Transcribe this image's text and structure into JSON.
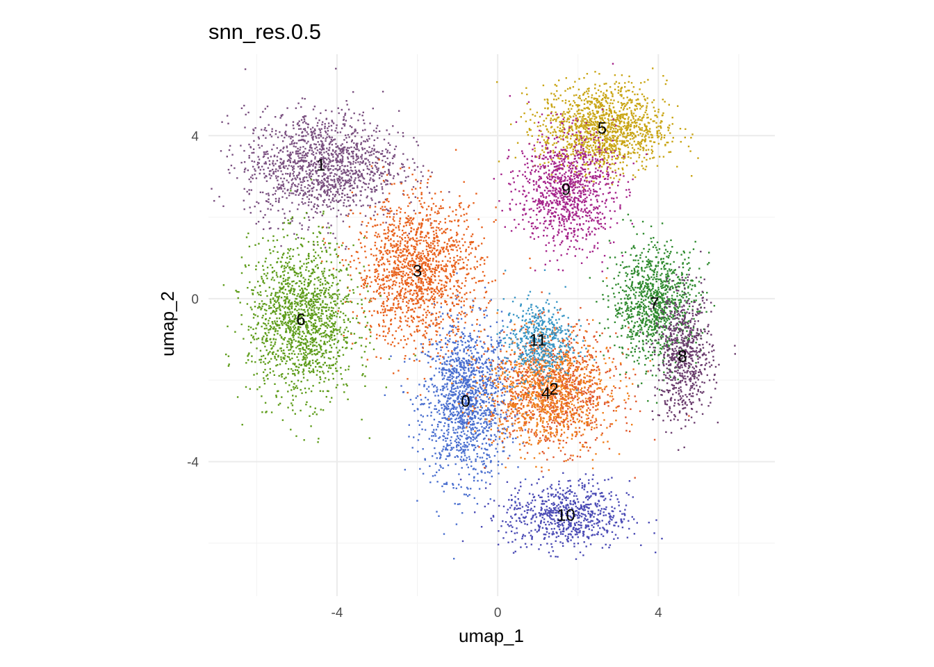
{
  "chart_data": {
    "type": "scatter",
    "title": "snn_res.0.5",
    "xlabel": "umap_1",
    "ylabel": "umap_2",
    "xlim": [
      -7.2,
      6.9
    ],
    "ylim": [
      -7.3,
      6.0
    ],
    "x_ticks": [
      -4,
      0,
      4
    ],
    "y_ticks": [
      -4,
      0,
      4
    ],
    "x_tick_labels": [
      "-4",
      "0",
      "4"
    ],
    "y_tick_labels": [
      "-4",
      "0",
      "4"
    ],
    "grid": true,
    "legend": "none",
    "clusters": [
      {
        "label": "0",
        "x": -0.8,
        "y": -2.5,
        "color": "#4a6fcf"
      },
      {
        "label": "1",
        "x": -4.4,
        "y": 3.3,
        "color": "#7a5080"
      },
      {
        "label": "2",
        "x": 1.4,
        "y": -2.2,
        "color": "#e0572a"
      },
      {
        "label": "3",
        "x": -2.0,
        "y": 0.7,
        "color": "#e8611c"
      },
      {
        "label": "4",
        "x": 1.2,
        "y": -2.3,
        "color": "#f07e1a"
      },
      {
        "label": "5",
        "x": 2.6,
        "y": 4.2,
        "color": "#c9a514"
      },
      {
        "label": "6",
        "x": -4.9,
        "y": -0.5,
        "color": "#5e9c1a"
      },
      {
        "label": "7",
        "x": 3.9,
        "y": -0.1,
        "color": "#2f8a2f"
      },
      {
        "label": "8",
        "x": 4.6,
        "y": -1.4,
        "color": "#6b3d6e"
      },
      {
        "label": "9",
        "x": 1.7,
        "y": 2.7,
        "color": "#a5238a"
      },
      {
        "label": "10",
        "x": 1.7,
        "y": -5.3,
        "color": "#4b4bb5"
      },
      {
        "label": "11",
        "x": 1.0,
        "y": -1.0,
        "color": "#3a97c6"
      }
    ]
  }
}
